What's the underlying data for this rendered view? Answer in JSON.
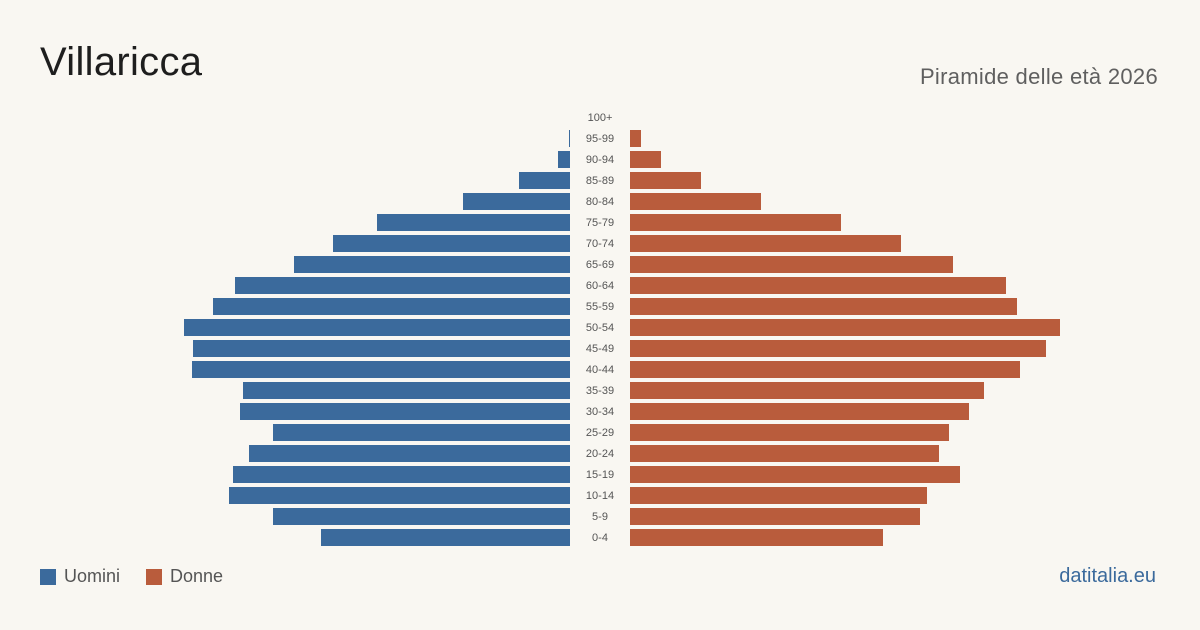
{
  "header": {
    "title": "Villaricca",
    "subtitle": "Piramide delle età 2026"
  },
  "legend": {
    "men_label": "Uomini",
    "women_label": "Donne"
  },
  "brand": "datitalia.eu",
  "colors": {
    "men": "#3b6a9c",
    "women": "#b95c3c",
    "background": "#f9f7f2"
  },
  "chart_data": {
    "type": "bar",
    "orientation": "horizontal-diverging",
    "categories": [
      "100+",
      "95-99",
      "90-94",
      "85-89",
      "80-84",
      "75-79",
      "70-74",
      "65-69",
      "60-64",
      "55-59",
      "50-54",
      "45-49",
      "40-44",
      "35-39",
      "30-34",
      "25-29",
      "20-24",
      "15-19",
      "10-14",
      "5-9",
      "0-4"
    ],
    "series": [
      {
        "name": "Uomini",
        "values": [
          0,
          1,
          12,
          51,
          107,
          193,
          237,
          276,
          335,
          357,
          386,
          377,
          378,
          327,
          330,
          297,
          321,
          337,
          341,
          297,
          249
        ]
      },
      {
        "name": "Donne",
        "values": [
          0,
          11,
          31,
          71,
          131,
          211,
          271,
          323,
          376,
          387,
          430,
          416,
          390,
          354,
          339,
          319,
          309,
          330,
          297,
          290,
          253
        ]
      }
    ],
    "grid": false,
    "legend_position": "bottom-left"
  }
}
